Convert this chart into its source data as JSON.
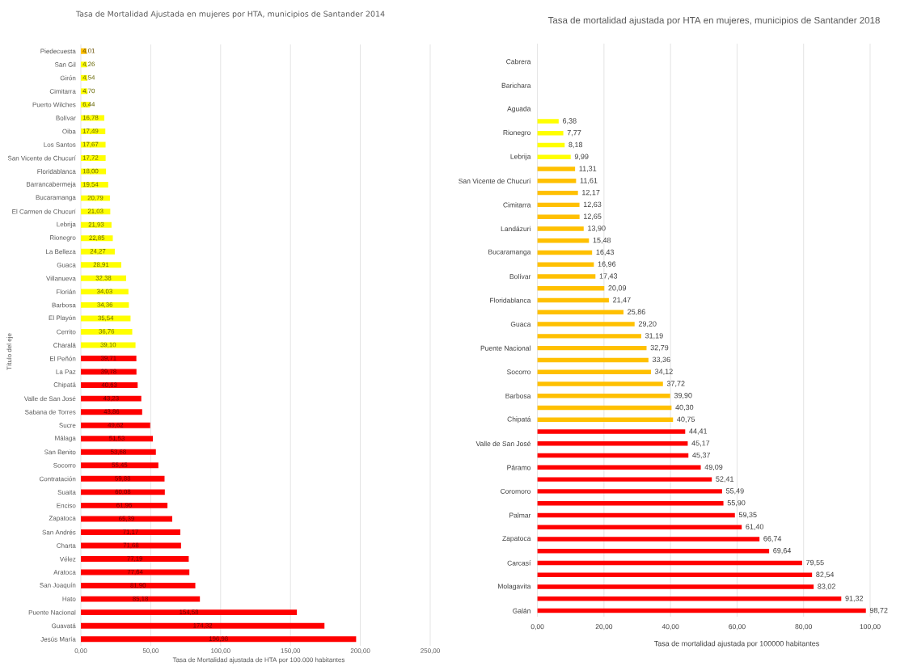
{
  "chart_data": [
    {
      "type": "bar",
      "orientation": "horizontal",
      "title": "Tasa de Mortalidad Ajustada en mujeres por HTA, municipios de Santander 2014",
      "xlabel": "Tasa de Mortalidad ajustada de HTA por 100.000 habitantes",
      "ylabel": "Título del eje",
      "categories": [
        "Piedecuesta",
        "San Gil",
        "Girón",
        "Cimitarra",
        "Puerto Wilches",
        "Bolívar",
        "Oiba",
        "Los Santos",
        "San Vicente de Chucurí",
        "Floridablanca",
        "Barrancabermeja",
        "Bucaramanga",
        "El Carmen de Chucurí",
        "Lebrija",
        "Rionegro",
        "La Belleza",
        "Guaca",
        "Villanueva",
        "Florián",
        "Barbosa",
        "El Playón",
        "Cerrito",
        "Charalá",
        "El Peñón",
        "La Paz",
        "Chipatá",
        "Valle de San José",
        "Sabana de Torres",
        "Sucre",
        "Málaga",
        "San Benito",
        "Socorro",
        "Contratación",
        "Suaita",
        "Enciso",
        "Zapatoca",
        "San Andrés",
        "Charta",
        "Vélez",
        "Aratoca",
        "San Joaquín",
        "Hato",
        "Puente Nacional",
        "Guavatá",
        "Jesús María"
      ],
      "values": [
        4.01,
        4.26,
        4.54,
        4.7,
        6.44,
        16.78,
        17.49,
        17.67,
        17.72,
        18.0,
        19.54,
        20.79,
        21.03,
        21.93,
        22.85,
        24.27,
        28.91,
        32.38,
        34.03,
        34.36,
        35.54,
        36.76,
        39.1,
        39.71,
        39.78,
        40.63,
        43.23,
        43.86,
        49.62,
        51.53,
        53.68,
        55.45,
        59.88,
        60.08,
        61.96,
        65.39,
        71.17,
        71.68,
        77.19,
        77.64,
        81.9,
        85.18,
        154.58,
        174.32,
        196.98
      ],
      "value_labels": [
        "4,01",
        "4,26",
        "4,54",
        "4,70",
        "6,44",
        "16,78",
        "17,49",
        "17,67",
        "17,72",
        "18,00",
        "19,54",
        "20,79",
        "21,03",
        "21,93",
        "22,85",
        "24,27",
        "28,91",
        "32,38",
        "34,03",
        "34,36",
        "35,54",
        "36,76",
        "39,10",
        "39,71",
        "39,78",
        "40,63",
        "43,23",
        "43,86",
        "49,62",
        "51,53",
        "53,68",
        "55,45",
        "59,88",
        "60,08",
        "61,96",
        "65,39",
        "71,17",
        "71,68",
        "77,19",
        "77,64",
        "81,90",
        "85,18",
        "154,58",
        "174,32",
        "196,98"
      ],
      "colors": [
        "#ffc000",
        "#ffff00",
        "#ffff00",
        "#ffff00",
        "#ffff00",
        "#ffff00",
        "#ffff00",
        "#ffff00",
        "#ffff00",
        "#ffff00",
        "#ffff00",
        "#ffff00",
        "#ffff00",
        "#ffff00",
        "#ffff00",
        "#ffff00",
        "#ffff00",
        "#ffff00",
        "#ffff00",
        "#ffff00",
        "#ffff00",
        "#ffff00",
        "#ffff00",
        "#ff0000",
        "#ff0000",
        "#ff0000",
        "#ff0000",
        "#ff0000",
        "#ff0000",
        "#ff0000",
        "#ff0000",
        "#ff0000",
        "#ff0000",
        "#ff0000",
        "#ff0000",
        "#ff0000",
        "#ff0000",
        "#ff0000",
        "#ff0000",
        "#ff0000",
        "#ff0000",
        "#ff0000",
        "#ff0000",
        "#ff0000",
        "#ff0000"
      ],
      "xlim": [
        0,
        250
      ],
      "xticks": [
        {
          "value": 0,
          "label": "0,00"
        },
        {
          "value": 50,
          "label": "50,00"
        },
        {
          "value": 100,
          "label": "100,00"
        },
        {
          "value": 150,
          "label": "150,00"
        },
        {
          "value": 200,
          "label": "200,00"
        },
        {
          "value": 250,
          "label": "250,00"
        }
      ],
      "grid": "x"
    },
    {
      "type": "bar",
      "orientation": "horizontal",
      "title": "Tasa de mortalidad ajustada por HTA en mujeres, municipios de Santander 2018",
      "xlabel": "Tasa de mortalidad ajustada por 100000 habitantes",
      "categories": [
        null,
        "Cabrera",
        null,
        "Barichara",
        null,
        "Aguada",
        null,
        "Rionegro",
        null,
        "Lebrija",
        null,
        "San Vicente de Chucurí",
        null,
        "Cimitarra",
        null,
        "Landázuri",
        null,
        "Bucaramanga",
        null,
        "Bolívar",
        null,
        "Floridablanca",
        null,
        "Guaca",
        null,
        "Puente Nacional",
        null,
        "Socorro",
        null,
        "Barbosa",
        null,
        "Chipatá",
        null,
        "Valle de San José",
        null,
        "Páramo",
        null,
        "Coromoro",
        null,
        "Palmar",
        null,
        "Zapatoca",
        null,
        "Carcasí",
        null,
        "Molagavita",
        null,
        "Galán"
      ],
      "values": [
        null,
        null,
        null,
        null,
        null,
        null,
        6.38,
        7.77,
        8.18,
        9.99,
        11.31,
        11.61,
        12.17,
        12.63,
        12.65,
        13.9,
        15.48,
        16.43,
        16.96,
        17.43,
        20.09,
        21.47,
        25.86,
        29.2,
        31.19,
        32.79,
        33.36,
        34.12,
        37.72,
        39.9,
        40.3,
        40.75,
        44.41,
        45.17,
        45.37,
        49.09,
        52.41,
        55.49,
        55.9,
        59.35,
        61.4,
        66.74,
        69.64,
        79.55,
        82.54,
        83.02,
        91.32,
        98.72
      ],
      "value_labels": [
        null,
        null,
        null,
        null,
        null,
        null,
        "6,38",
        "7,77",
        "8,18",
        "9,99",
        "11,31",
        "11,61",
        "12,17",
        "12,63",
        "12,65",
        "13,90",
        "15,48",
        "16,43",
        "16,96",
        "17,43",
        "20,09",
        "21,47",
        "25,86",
        "29,20",
        "31,19",
        "32,79",
        "33,36",
        "34,12",
        "37,72",
        "39,90",
        "40,30",
        "40,75",
        "44,41",
        "45,17",
        "45,37",
        "49,09",
        "52,41",
        "55,49",
        "55,90",
        "59,35",
        "61,40",
        "66,74",
        "69,64",
        "79,55",
        "82,54",
        "83,02",
        "91,32",
        "98,72"
      ],
      "colors": [
        null,
        null,
        null,
        null,
        null,
        null,
        "#ffff00",
        "#ffff00",
        "#ffff00",
        "#ffff00",
        "#ffc000",
        "#ffc000",
        "#ffc000",
        "#ffc000",
        "#ffc000",
        "#ffc000",
        "#ffc000",
        "#ffc000",
        "#ffc000",
        "#ffc000",
        "#ffc000",
        "#ffc000",
        "#ffc000",
        "#ffc000",
        "#ffc000",
        "#ffc000",
        "#ffc000",
        "#ffc000",
        "#ffc000",
        "#ffc000",
        "#ffc000",
        "#ffc000",
        "#ff0000",
        "#ff0000",
        "#ff0000",
        "#ff0000",
        "#ff0000",
        "#ff0000",
        "#ff0000",
        "#ff0000",
        "#ff0000",
        "#ff0000",
        "#ff0000",
        "#ff0000",
        "#ff0000",
        "#ff0000",
        "#ff0000",
        "#ff0000"
      ],
      "xlim": [
        0,
        100
      ],
      "xticks": [
        {
          "value": 0,
          "label": "0,00"
        },
        {
          "value": 20,
          "label": "20,00"
        },
        {
          "value": 40,
          "label": "40,00"
        },
        {
          "value": 60,
          "label": "60,00"
        },
        {
          "value": 80,
          "label": "80,00"
        },
        {
          "value": 100,
          "label": "100,00"
        }
      ],
      "grid": "x"
    }
  ]
}
